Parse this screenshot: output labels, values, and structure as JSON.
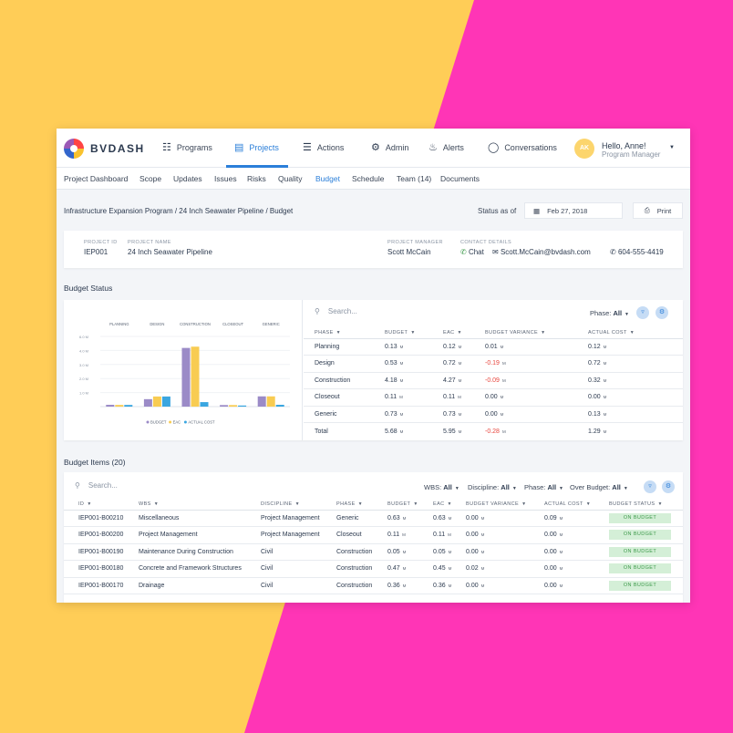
{
  "app": {
    "brand": "BVDASH"
  },
  "nav": {
    "items": [
      {
        "label": "Programs",
        "icon": "sitemap-icon"
      },
      {
        "label": "Projects",
        "icon": "folder-icon"
      },
      {
        "label": "Actions",
        "icon": "clipboard-icon"
      },
      {
        "label": "Admin",
        "icon": "gear-icon"
      },
      {
        "label": "Alerts",
        "icon": "bell-icon"
      },
      {
        "label": "Conversations",
        "icon": "chat-icon"
      }
    ],
    "active": "Projects"
  },
  "user": {
    "initials": "AK",
    "greeting": "Hello, Anne!",
    "role": "Program Manager"
  },
  "subnav": {
    "items": [
      "Project Dashboard",
      "Scope",
      "Updates",
      "Issues",
      "Risks",
      "Quality",
      "Budget",
      "Schedule",
      "Team (14)",
      "Documents"
    ],
    "active": "Budget"
  },
  "header": {
    "breadcrumb": "Infrastructure Expansion Program / 24 Inch Seawater Pipeline / Budget",
    "status_label": "Status as of",
    "status_date": "Feb 27, 2018",
    "print_label": "Print"
  },
  "project": {
    "id_label": "PROJECT ID",
    "id": "IEP001",
    "name_label": "PROJECT NAME",
    "name": "24 Inch Seawater Pipeline",
    "manager_label": "PROJECT MANAGER",
    "manager": "Scott McCain",
    "contact_label": "CONTACT DETAILS",
    "chat_label": "Chat",
    "email": "Scott.McCain@bvdash.com",
    "phone": "604-555-4419"
  },
  "budget_status": {
    "title": "Budget Status",
    "search_placeholder": "Search...",
    "phase_filter_label": "Phase:",
    "phase_filter_value": "All",
    "columns": [
      "PHASE",
      "BUDGET",
      "EAC",
      "BUDGET VARIANCE",
      "ACTUAL COST"
    ],
    "rows": [
      {
        "phase": "Planning",
        "budget": "0.13",
        "eac": "0.12",
        "variance": "0.01",
        "actual": "0.12"
      },
      {
        "phase": "Design",
        "budget": "0.53",
        "eac": "0.72",
        "variance": "-0.19",
        "actual": "0.72"
      },
      {
        "phase": "Construction",
        "budget": "4.18",
        "eac": "4.27",
        "variance": "-0.09",
        "actual": "0.32"
      },
      {
        "phase": "Closeout",
        "budget": "0.11",
        "eac": "0.11",
        "variance": "0.00",
        "actual": "0.00"
      },
      {
        "phase": "Generic",
        "budget": "0.73",
        "eac": "0.73",
        "variance": "0.00",
        "actual": "0.13"
      }
    ],
    "total": {
      "label": "Total",
      "budget": "5.68",
      "eac": "5.95",
      "variance": "-0.28",
      "actual": "1.29"
    },
    "unit": "M"
  },
  "chart_data": {
    "type": "bar",
    "categories": [
      "PLANNING",
      "DESIGN",
      "CONSTRUCTION",
      "CLOSEOUT",
      "GENERIC"
    ],
    "series": [
      {
        "name": "BUDGET",
        "values": [
          0.13,
          0.53,
          4.18,
          0.11,
          0.73
        ],
        "color": "#9b8bc7"
      },
      {
        "name": "EAC",
        "values": [
          0.12,
          0.72,
          4.27,
          0.11,
          0.73
        ],
        "color": "#f8cc52"
      },
      {
        "name": "ACTUAL COST",
        "values": [
          0.12,
          0.72,
          0.32,
          0.0,
          0.13
        ],
        "color": "#3aa6e0"
      }
    ],
    "y_ticks": [
      "6.0 M",
      "4.0 M",
      "3.0 M",
      "2.0 M",
      "1.0 M"
    ],
    "ylim": [
      0,
      5
    ]
  },
  "budget_items": {
    "title": "Budget Items (20)",
    "search_placeholder": "Search...",
    "filters": [
      {
        "label": "WBS:",
        "value": "All"
      },
      {
        "label": "Discipline:",
        "value": "All"
      },
      {
        "label": "Phase:",
        "value": "All"
      },
      {
        "label": "Over Budget:",
        "value": "All"
      }
    ],
    "columns": [
      "ID",
      "WBS",
      "DISCIPLINE",
      "PHASE",
      "BUDGET",
      "EAC",
      "BUDGET VARIANCE",
      "ACTUAL COST",
      "BUDGET STATUS"
    ],
    "rows": [
      {
        "id": "IEP001-B00210",
        "wbs": "Miscellaneous",
        "discipline": "Project Management",
        "phase": "Generic",
        "budget": "0.63",
        "eac": "0.63",
        "variance": "0.00",
        "actual": "0.09",
        "status": "ON BUDGET"
      },
      {
        "id": "IEP001-B00200",
        "wbs": "Project Management",
        "discipline": "Project Management",
        "phase": "Closeout",
        "budget": "0.11",
        "eac": "0.11",
        "variance": "0.00",
        "actual": "0.00",
        "status": "ON BUDGET"
      },
      {
        "id": "IEP001-B00190",
        "wbs": "Maintenance During Construction",
        "discipline": "Civil",
        "phase": "Construction",
        "budget": "0.05",
        "eac": "0.05",
        "variance": "0.00",
        "actual": "0.00",
        "status": "ON BUDGET"
      },
      {
        "id": "IEP001-B00180",
        "wbs": "Concrete and Framework Structures",
        "discipline": "Civil",
        "phase": "Construction",
        "budget": "0.47",
        "eac": "0.45",
        "variance": "0.02",
        "actual": "0.00",
        "status": "ON BUDGET"
      },
      {
        "id": "IEP001-B00170",
        "wbs": "Drainage",
        "discipline": "Civil",
        "phase": "Construction",
        "budget": "0.36",
        "eac": "0.36",
        "variance": "0.00",
        "actual": "0.00",
        "status": "ON BUDGET"
      }
    ],
    "unit": "M"
  }
}
